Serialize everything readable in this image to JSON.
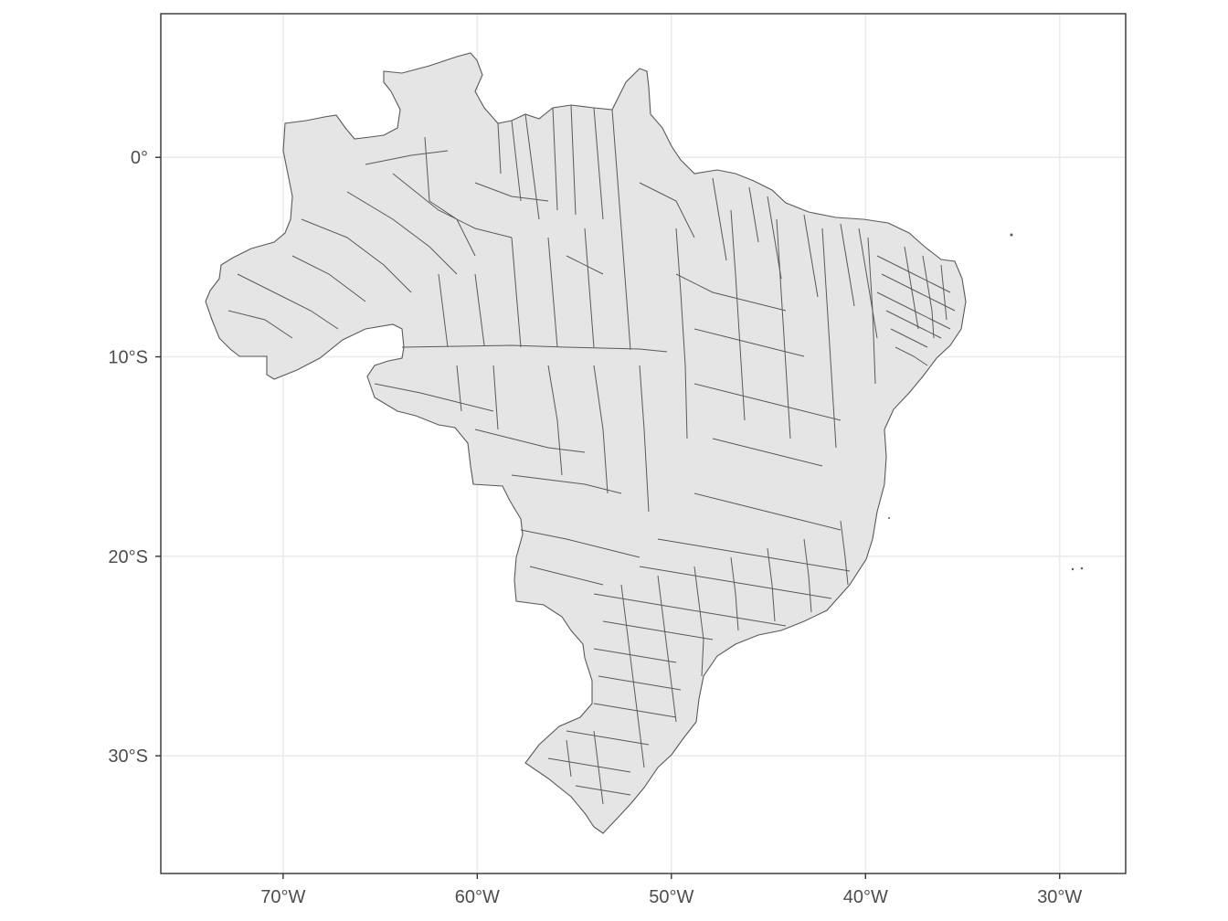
{
  "map": {
    "type": "choropleth",
    "fill_color": "#e5e5e5",
    "border_color": "#595959",
    "panel_border_color": "#333333",
    "grid_color": "#ebebeb",
    "background": "#ffffff",
    "grid": true,
    "lon_range": [
      -76.3,
      -26.6
    ],
    "lat_range": [
      -35.9,
      7.2
    ],
    "x_ticks": [
      {
        "value": -70,
        "label": "70°W"
      },
      {
        "value": -60,
        "label": "60°W"
      },
      {
        "value": -50,
        "label": "50°W"
      },
      {
        "value": -40,
        "label": "40°W"
      },
      {
        "value": -30,
        "label": "30°W"
      }
    ],
    "y_ticks": [
      {
        "value": 0,
        "label": "0°"
      },
      {
        "value": -10,
        "label": "10°S"
      },
      {
        "value": -20,
        "label": "20°S"
      },
      {
        "value": -30,
        "label": "30°S"
      }
    ]
  }
}
